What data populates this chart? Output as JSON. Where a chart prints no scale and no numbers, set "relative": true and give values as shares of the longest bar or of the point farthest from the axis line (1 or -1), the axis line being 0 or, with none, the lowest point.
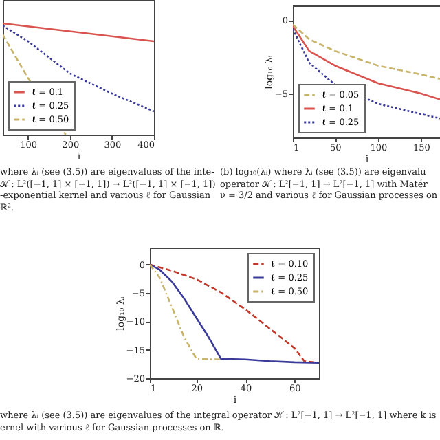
{
  "chart_data": [
    {
      "type": "line",
      "relative": true,
      "xlabel": "i",
      "xlim": [
        40,
        400
      ],
      "xticks": [
        100,
        200,
        300,
        400
      ],
      "legend": "bottom left",
      "series": [
        {
          "name": "ℓ = 0.1",
          "color": "#d9534f",
          "line_style": "solid",
          "x": [
            40,
            400
          ],
          "values": [
            1.0,
            0.84
          ]
        },
        {
          "name": "ℓ = 0.25",
          "color": "#3a3a9a",
          "line_style": "dotted",
          "x": [
            40,
            100,
            200,
            300,
            400
          ],
          "values": [
            0.98,
            0.84,
            0.55,
            0.37,
            0.21
          ]
        },
        {
          "name": "ℓ = 0.50",
          "color": "#c8b46a",
          "line_style": "dashed",
          "x": [
            40,
            100,
            190
          ],
          "values": [
            0.9,
            0.51,
            0
          ]
        }
      ],
      "annotations": [
        "where λᵢ (see (3.5)) are eigenvalues of the inte-",
        "𝒦 : L²([−1, 1] × [−1, 1]) → L²([−1, 1] × [−1, 1])",
        "-exponential kernel and various ℓ for Gaussian",
        "ℝ²."
      ]
    },
    {
      "type": "line",
      "xlabel": "i",
      "ylabel": "log₁₀ λᵢ",
      "xlim": [
        1,
        172
      ],
      "xticks": [
        1,
        50,
        100,
        150
      ],
      "ylim": [
        -8,
        1
      ],
      "yticks": [
        -5,
        0
      ],
      "legend": "bottom left",
      "series": [
        {
          "name": "ℓ = 0.05",
          "color": "#c8b46a",
          "line_style": "dashed",
          "x": [
            1,
            20,
            50,
            100,
            150,
            172
          ],
          "values": [
            -0.3,
            -1.3,
            -2.1,
            -3.1,
            -3.7,
            -4.0
          ]
        },
        {
          "name": "ℓ = 0.1",
          "color": "#d9534f",
          "line_style": "solid",
          "x": [
            1,
            20,
            50,
            100,
            150,
            172
          ],
          "values": [
            -0.4,
            -2.1,
            -3.1,
            -4.3,
            -5.0,
            -5.4
          ]
        },
        {
          "name": "ℓ = 0.25",
          "color": "#3a3a9a",
          "line_style": "dotted",
          "x": [
            1,
            20,
            50,
            100,
            150,
            172
          ],
          "values": [
            -0.6,
            -2.9,
            -4.4,
            -5.7,
            -6.4,
            -6.7
          ]
        }
      ],
      "annotations": [
        "(b) log₁₀(λᵢ) where λᵢ (see (3.5)) are eigenvalu",
        "operator 𝒦 : L²[−1, 1] → L²[−1, 1] with Matér",
        "ν = 3/2 and various ℓ for Gaussian processes on"
      ]
    },
    {
      "type": "line",
      "xlabel": "i",
      "ylabel": "log₁₀ λᵢ",
      "xlim": [
        1,
        70
      ],
      "xticks": [
        1,
        20,
        40,
        60
      ],
      "ylim": [
        -20,
        3
      ],
      "yticks": [
        -20,
        -15,
        -10,
        -5,
        0
      ],
      "legend": "top right",
      "series": [
        {
          "name": "ℓ = 0.10",
          "color": "#c0392b",
          "line_style": "dashed",
          "x": [
            1,
            10,
            20,
            30,
            40,
            50,
            60,
            64,
            70
          ],
          "values": [
            0,
            -1.1,
            -2.6,
            -4.9,
            -7.9,
            -11.3,
            -14.7,
            -17,
            -17.3
          ]
        },
        {
          "name": "ℓ = 0.25",
          "color": "#3a3a9a",
          "line_style": "solid",
          "x": [
            1,
            5,
            10,
            15,
            20,
            25,
            30,
            40,
            50,
            60,
            70
          ],
          "values": [
            0,
            -0.9,
            -3,
            -6,
            -9.4,
            -12.8,
            -16.6,
            -16.7,
            -17,
            -17.2,
            -17.3
          ]
        },
        {
          "name": "ℓ = 0.50",
          "color": "#c8b46a",
          "line_style": "dashdot",
          "x": [
            1,
            5,
            10,
            15,
            20,
            30
          ],
          "values": [
            0,
            -2.3,
            -7.5,
            -12.8,
            -16.6,
            -16.7
          ]
        }
      ],
      "annotations": [
        "where λᵢ (see (3.5)) are eigenvalues of the integral operator 𝒦 : L²[−1, 1] → L²[−1, 1] where k is",
        "ernel with various ℓ for Gaussian processes on ℝ."
      ]
    }
  ]
}
